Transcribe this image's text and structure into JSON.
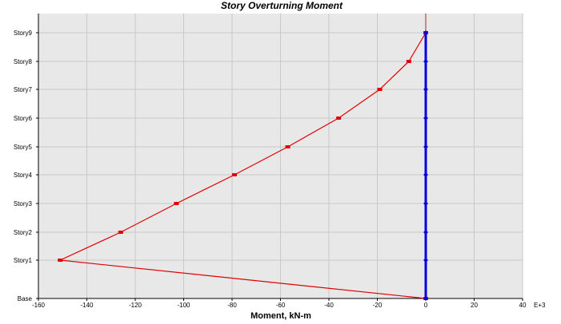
{
  "chart_data": {
    "type": "line",
    "title": "Story Overturning Moment",
    "xlabel": "Moment, kN-m",
    "x_multiplier_label": "E+3",
    "xlim": [
      -160,
      40
    ],
    "x_ticks": [
      -160,
      -140,
      -120,
      -100,
      -80,
      -60,
      -40,
      -20,
      0,
      20,
      40
    ],
    "x_tick_labels": [
      "-160",
      "-140",
      "-120",
      "-100",
      "-80",
      "-60",
      "-40",
      "-20",
      "0",
      "20",
      "40"
    ],
    "categories": [
      "Base",
      "Story1",
      "Story2",
      "Story3",
      "Story4",
      "Story5",
      "Story6",
      "Story7",
      "Story8",
      "Story9"
    ],
    "grid": true,
    "colors": {
      "background": "#ffffff",
      "plot_background": "#e8e8e8",
      "grid": "#c8c8c8",
      "zero_line": "#b22222",
      "red_series": "#e00000",
      "blue_series": "#0000e0"
    },
    "series": [
      {
        "color": "#e00000",
        "points": [
          {
            "x": 0,
            "y": "Story9"
          },
          {
            "x": -7,
            "y": "Story8"
          },
          {
            "x": -19,
            "y": "Story7"
          },
          {
            "x": -36,
            "y": "Story6"
          },
          {
            "x": -57,
            "y": "Story5"
          },
          {
            "x": -79,
            "y": "Story4"
          },
          {
            "x": -103,
            "y": "Story3"
          },
          {
            "x": -126,
            "y": "Story2"
          },
          {
            "x": -151,
            "y": "Story1"
          },
          {
            "x": 0,
            "y": "Base"
          }
        ]
      },
      {
        "color": "#0000e0",
        "points": [
          {
            "x": 0,
            "y": "Story9"
          },
          {
            "x": 0,
            "y": "Story8"
          },
          {
            "x": 0,
            "y": "Story7"
          },
          {
            "x": 0,
            "y": "Story6"
          },
          {
            "x": 0,
            "y": "Story5"
          },
          {
            "x": 0,
            "y": "Story4"
          },
          {
            "x": 0,
            "y": "Story3"
          },
          {
            "x": 0,
            "y": "Story2"
          },
          {
            "x": 0,
            "y": "Story1"
          },
          {
            "x": 0,
            "y": "Base"
          }
        ]
      }
    ]
  }
}
